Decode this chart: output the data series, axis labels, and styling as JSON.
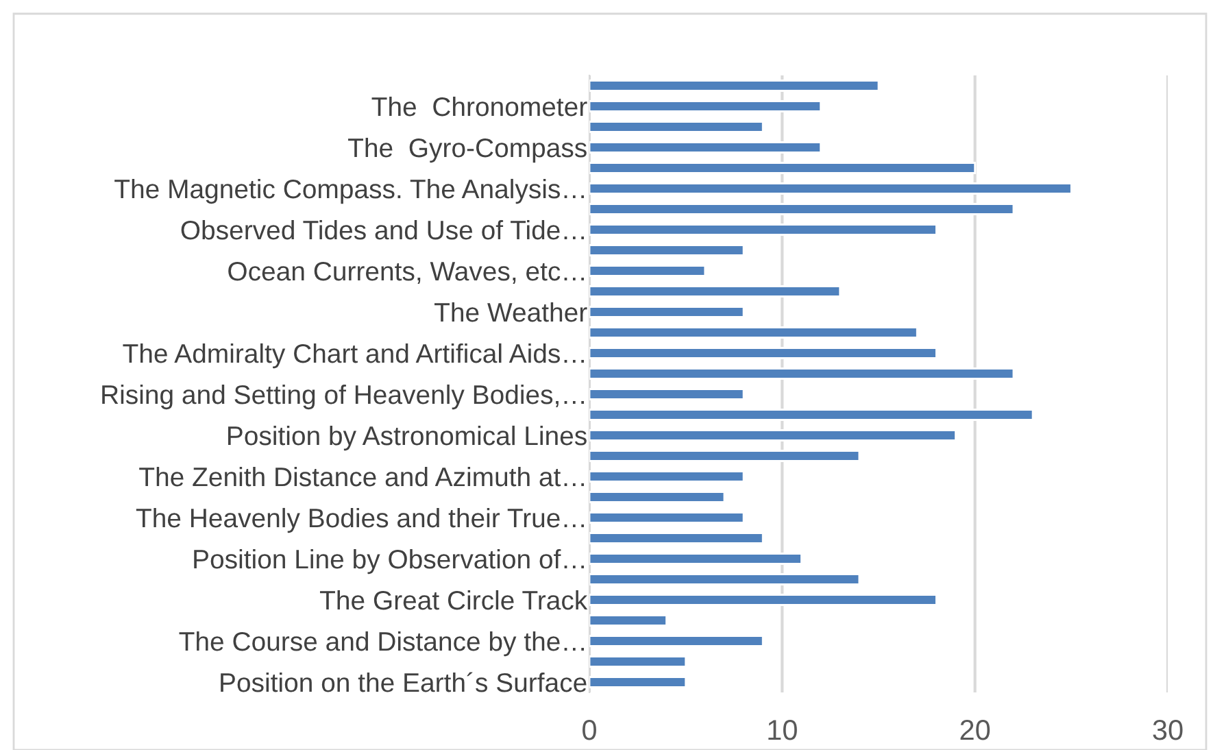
{
  "chart_data": {
    "type": "bar",
    "orientation": "horizontal",
    "categories": [
      null,
      "The  Chronometer",
      null,
      "The  Gyro-Compass",
      null,
      "The Magnetic Compass. The Analysis…",
      null,
      "Observed Tides and Use of Tide…",
      null,
      "Ocean Currents, Waves, etc…",
      null,
      "The Weather",
      null,
      "The Admiralty Chart and Artifical Aids…",
      null,
      "Rising and Setting of Heavenly Bodies,…",
      null,
      "Position by Astronomical Lines",
      null,
      "The Zenith Distance and Azimuth at…",
      null,
      "The Heavenly Bodies and their True…",
      null,
      "Position Line by Observation of…",
      null,
      "The Great Circle Track",
      null,
      "The Course and Distance by the…",
      null,
      "Position on the Earth´s Surface"
    ],
    "values": [
      15,
      12,
      9,
      12,
      20,
      25,
      22,
      18,
      8,
      6,
      13,
      8,
      17,
      18,
      22,
      8,
      23,
      19,
      14,
      8,
      7,
      8,
      9,
      11,
      14,
      18,
      4,
      9,
      5,
      5
    ],
    "color": "#4f81bd",
    "xlim": [
      0,
      30
    ],
    "xticks": [
      0,
      10,
      20,
      30
    ],
    "grid": "x",
    "legend": false
  }
}
